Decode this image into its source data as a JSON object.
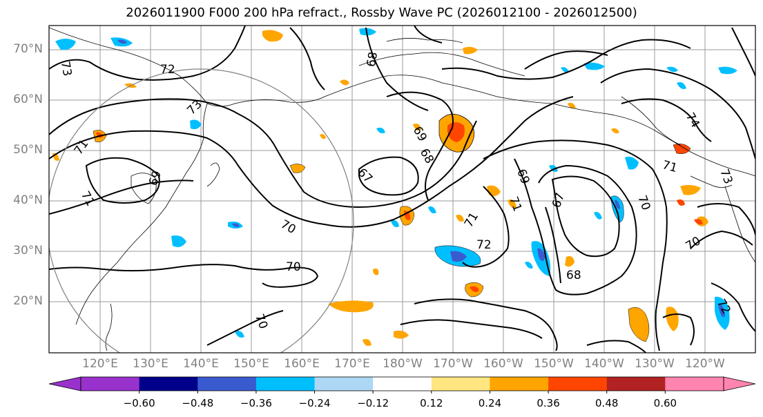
{
  "title": "2026011900 F000 200 hPa refract., Rossby Wave PC (2026012100 - 2026012500)",
  "lat_labels": [
    "70°N",
    "60°N",
    "50°N",
    "40°N",
    "30°N",
    "20°N"
  ],
  "lon_labels": [
    "120°E",
    "130°E",
    "140°E",
    "150°E",
    "160°E",
    "170°E",
    "180°W",
    "170°W",
    "160°W",
    "150°W",
    "140°W",
    "130°W",
    "120°W"
  ],
  "contour_labels": [
    "73",
    "72",
    "73",
    "71",
    "69",
    "71",
    "68",
    "70",
    "67",
    "69",
    "68",
    "71",
    "72",
    "70",
    "69",
    "67",
    "71",
    "68",
    "71",
    "70",
    "70",
    "74",
    "72",
    "73",
    "70"
  ],
  "colorbar": {
    "ticks": [
      "−0.60",
      "−0.48",
      "−0.36",
      "−0.24",
      "−0.12",
      "0.12",
      "0.24",
      "0.36",
      "0.48",
      "0.60"
    ],
    "colors": [
      "#9932cc",
      "#00008b",
      "#3a5bd0",
      "#00bfff",
      "#add8f5",
      "#ffffff",
      "#ffe680",
      "#ffa500",
      "#ff4500",
      "#b22222",
      "#ff85b0",
      "#ff85b0"
    ]
  }
}
